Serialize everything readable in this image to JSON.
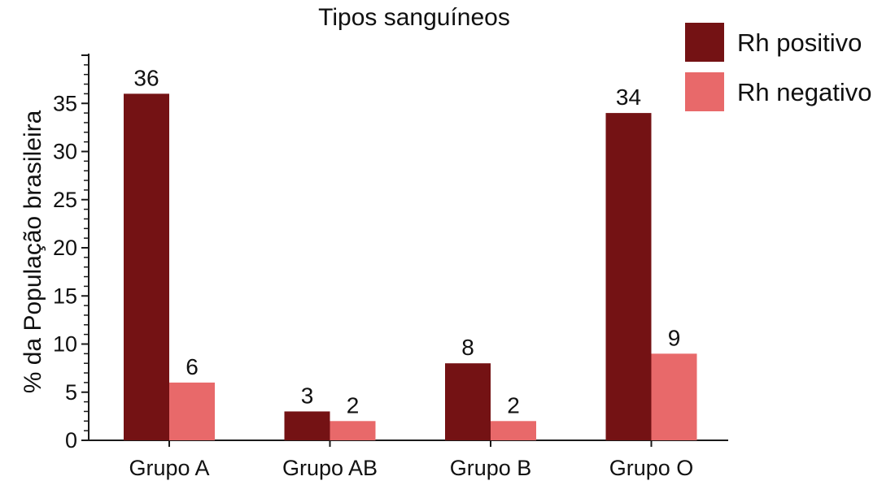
{
  "chart_data": {
    "type": "bar",
    "title": "Tipos sanguíneos",
    "xlabel": "",
    "ylabel": "% da População brasileira",
    "categories": [
      "Grupo A",
      "Grupo AB",
      "Grupo B",
      "Grupo O"
    ],
    "series": [
      {
        "name": "Rh positivo",
        "color": "#741214",
        "values": [
          36,
          3,
          8,
          34
        ]
      },
      {
        "name": "Rh negativo",
        "color": "#e8696a",
        "values": [
          6,
          2,
          2,
          9
        ]
      }
    ],
    "ylim": [
      0,
      40
    ],
    "yticks": [
      0,
      5,
      10,
      15,
      20,
      25,
      30,
      35
    ],
    "grid": false,
    "legend_position": "top-right",
    "data_labels": true
  }
}
